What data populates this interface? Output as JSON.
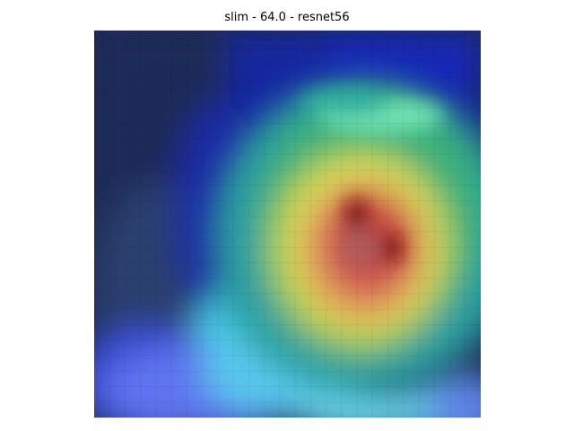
{
  "figure": {
    "title": "slim - 64.0 - resnet56"
  },
  "colors": {
    "background": "#ffffff",
    "deep_blue": "#0d1a8c",
    "dark_navy": "#1c2a55",
    "cyan": "#5ee3e6",
    "green": "#2ea67a",
    "yellow": "#e6e45a",
    "orange": "#e6a050",
    "red": "#c63a38",
    "dark_red": "#8c0d12",
    "periwinkle": "#6c7cf0"
  }
}
